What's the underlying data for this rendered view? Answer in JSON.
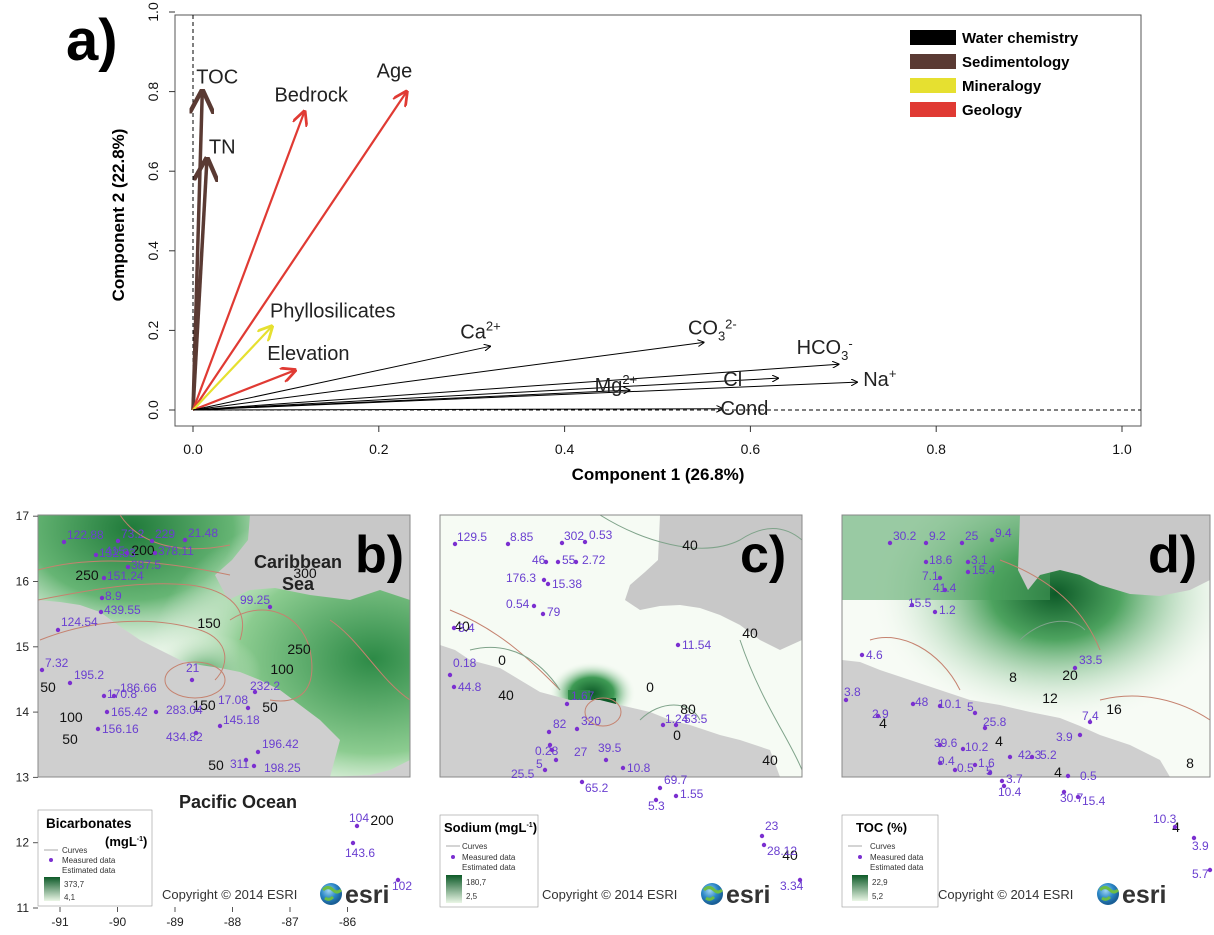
{
  "chart_data": [
    {
      "type": "biplot",
      "panel_letter": "a)",
      "xlabel": "Component 1 (26.8%)",
      "ylabel": "Component 2 (22.8%)",
      "xlim": [
        0,
        1
      ],
      "ylim": [
        0,
        1
      ],
      "x_ticks": [
        "0.0",
        "0.2",
        "0.4",
        "0.6",
        "0.8",
        "1.0"
      ],
      "y_ticks": [
        "0.0",
        "0.2",
        "0.4",
        "0.6",
        "0.8",
        "1.0"
      ],
      "legend": {
        "position": "top-right",
        "items": [
          {
            "name": "Water chemistry",
            "color": "#000000"
          },
          {
            "name": "Sedimentology",
            "color": "#5a3a33"
          },
          {
            "name": "Mineralogy",
            "color": "#e6e030"
          },
          {
            "name": "Geology",
            "color": "#e03a33"
          }
        ]
      },
      "vectors": [
        {
          "label": "TOC",
          "x": 0.01,
          "y": 0.8,
          "group": "Sedimentology"
        },
        {
          "label": "TN",
          "x": 0.015,
          "y": 0.63,
          "group": "Sedimentology"
        },
        {
          "label": "Bedrock",
          "x": 0.12,
          "y": 0.75,
          "group": "Geology"
        },
        {
          "label": "Age",
          "x": 0.23,
          "y": 0.8,
          "group": "Geology"
        },
        {
          "label": "Elevation",
          "x": 0.11,
          "y": 0.1,
          "group": "Geology"
        },
        {
          "label": "Phyllosilicates",
          "x": 0.085,
          "y": 0.21,
          "group": "Mineralogy"
        },
        {
          "label": "Ca2+",
          "x": 0.32,
          "y": 0.16,
          "group": "Water chemistry"
        },
        {
          "label": "CO32-",
          "x": 0.55,
          "y": 0.17,
          "group": "Water chemistry"
        },
        {
          "label": "HCO3-",
          "x": 0.695,
          "y": 0.115,
          "group": "Water chemistry"
        },
        {
          "label": "Cl",
          "x": 0.63,
          "y": 0.08,
          "group": "Water chemistry"
        },
        {
          "label": "Na+",
          "x": 0.715,
          "y": 0.07,
          "group": "Water chemistry"
        },
        {
          "label": "Mg2+",
          "x": 0.47,
          "y": 0.05,
          "group": "Water chemistry"
        },
        {
          "label": "Cond",
          "x": 0.57,
          "y": 0.003,
          "group": "Water chemistry"
        }
      ]
    },
    {
      "type": "map",
      "panel_letter": "b)",
      "variable": "Bicarbonates",
      "unit_prefix": "(mg",
      "unit_main": "L",
      "unit_sup": "-1",
      "unit_suffix": ")",
      "legend_curves": "Curves",
      "legend_measured": "Measured data",
      "legend_estimated": "Estimated data",
      "scale_max": "373,7",
      "scale_min": "4,1",
      "copyright": "Copyright © 2014 ESRI",
      "esri": "esri",
      "place_labels": [
        "Caribbean",
        "Sea",
        "Pacific Ocean"
      ],
      "x_ticks": [
        "-91",
        "-90",
        "-89",
        "-88",
        "-87",
        "-86"
      ],
      "y_ticks": [
        "11",
        "12",
        "13",
        "14",
        "15",
        "16",
        "17"
      ],
      "contour_labels": [
        "300",
        "250",
        "200",
        "250",
        "150",
        "100",
        "50",
        "100",
        "150",
        "50",
        "50",
        "50",
        "200"
      ],
      "points": [
        "122.88",
        "73.2",
        "229",
        "21.48",
        "132.33",
        "415",
        "378.11",
        "387.5",
        "151.24",
        "8.9",
        "439.55",
        "124.54",
        "99.25",
        "7.32",
        "195.2",
        "170.8",
        "186.66",
        "21",
        "232.2",
        "17.08",
        "165.42",
        "283.04",
        "156.16",
        "145.18",
        "434.82",
        "196.42",
        "311",
        "198.25",
        "104",
        "143.6",
        "102"
      ]
    },
    {
      "type": "map",
      "panel_letter": "c)",
      "variable": "Sodium",
      "unit_prefix": "(mg",
      "unit_main": "L",
      "unit_sup": "-1",
      "unit_suffix": ")",
      "legend_curves": "Curves",
      "legend_measured": "Measured data",
      "legend_estimated": "Estimated data",
      "scale_max": "180,7",
      "scale_min": "2,5",
      "copyright": "Copyright © 2014 ESRI",
      "esri": "esri",
      "contour_labels": [
        "40",
        "40",
        "0",
        "40",
        "0",
        "40",
        "80",
        "0",
        "40",
        "40"
      ],
      "points": [
        "129.5",
        "8.85",
        "302",
        "0.53",
        "46",
        "55",
        "2.72",
        "176.3",
        "15.38",
        "0.54",
        "79",
        "3.4",
        "11.54",
        "0.18",
        "44.8",
        "1.67",
        "1.24",
        "53.5",
        "82",
        "320",
        "0.28",
        "27",
        "5",
        "25.5",
        "39.5",
        "10.8",
        "65.2",
        "69.7",
        "5.3",
        "1.55",
        "23",
        "28.12",
        "3.34"
      ]
    },
    {
      "type": "map",
      "panel_letter": "d)",
      "variable": "TOC (%)",
      "legend_curves": "Curves",
      "legend_measured": "Measured data",
      "legend_estimated": "Estimated data",
      "scale_max": "22,9",
      "scale_min": "5,2",
      "copyright": "Copyright © 2014 ESRI",
      "esri": "esri",
      "contour_labels": [
        "20",
        "12",
        "16",
        "8",
        "4",
        "4",
        "4",
        "8",
        "4"
      ],
      "points": [
        "30.2",
        "9.2",
        "25",
        "9.4",
        "18.6",
        "3.1",
        "7.1",
        "15.4",
        "41.4",
        "15.5",
        "1.2",
        "4.6",
        "33.5",
        "3.8",
        "2.9",
        "48",
        "10.1",
        "5",
        "25.8",
        "3.9",
        "7.4",
        "39.6",
        "10.2",
        "9.4",
        "0.5",
        "1.6",
        "42.3",
        "5.2",
        "5",
        "3.7",
        "0.5",
        "10.4",
        "30.7",
        "15.4",
        "10.3",
        "3.9",
        "5.7"
      ]
    }
  ]
}
